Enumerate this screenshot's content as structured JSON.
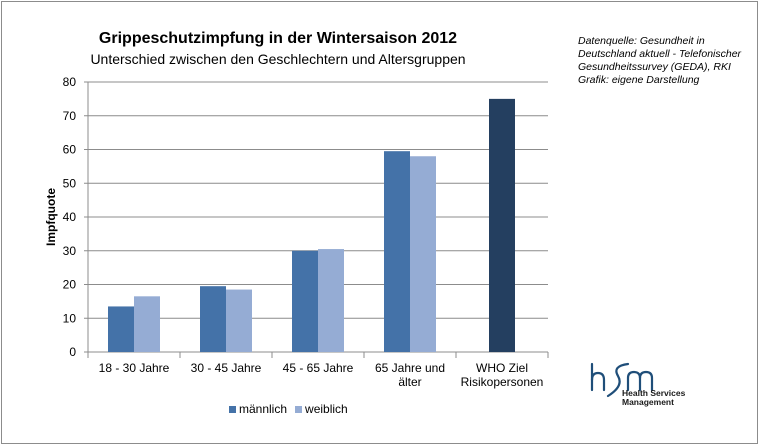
{
  "chart_data": {
    "type": "bar",
    "title": "Grippeschutzimpfung in der Wintersaison 2012",
    "subtitle": "Unterschied zwischen  den Geschlechtern und Altersgruppen",
    "ylabel": "Impfquote",
    "ylim": [
      0,
      80
    ],
    "yticks": [
      0,
      10,
      20,
      30,
      40,
      50,
      60,
      70,
      80
    ],
    "grid": true,
    "legend_position": "bottom",
    "categories": [
      [
        "18 - 30 Jahre"
      ],
      [
        "30 - 45 Jahre"
      ],
      [
        "45 - 65 Jahre"
      ],
      [
        "65 Jahre und",
        "älter"
      ],
      [
        "WHO Ziel",
        "Risikopersonen"
      ]
    ],
    "series": [
      {
        "name": "männlich",
        "color": "#4472a8",
        "values": [
          13.5,
          19.5,
          30,
          59.5,
          null
        ]
      },
      {
        "name": "weiblich",
        "color": "#95acd4",
        "values": [
          16.5,
          18.5,
          30.5,
          58,
          null
        ]
      },
      {
        "name": "",
        "color": "#243f60",
        "values": [
          null,
          null,
          null,
          null,
          75
        ]
      }
    ]
  },
  "source": {
    "lines": [
      "Datenquelle: Gesundheit in",
      "Deutschland aktuell - Telefonischer",
      "Gesundheitssurvey (GEDA), RKI",
      "Grafik: eigene Darstellung"
    ]
  },
  "logo": {
    "mark": "hsm",
    "lines": [
      "Health Services",
      "Management"
    ],
    "color": "#1f4e79"
  }
}
